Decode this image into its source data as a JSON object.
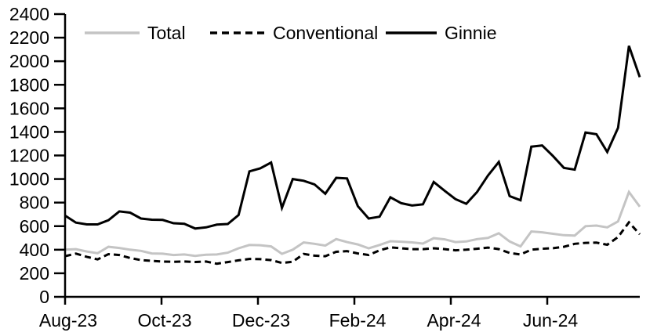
{
  "chart_data": {
    "type": "line",
    "title": "",
    "xlabel": "",
    "ylabel": "",
    "frequency": "weekly",
    "x_tick_labels": [
      "Aug-23",
      "Oct-23",
      "Dec-23",
      "Feb-24",
      "Apr-24",
      "Jun-24"
    ],
    "y_ticks": [
      0,
      200,
      400,
      600,
      800,
      1000,
      1200,
      1400,
      1600,
      1800,
      2000,
      2200,
      2400
    ],
    "ylim": [
      0,
      2400
    ],
    "grid": false,
    "legend_position": "top",
    "series": [
      {
        "name": "Total",
        "color": "#c4c4c4",
        "style": "solid",
        "values": [
          400,
          405,
          385,
          370,
          425,
          415,
          400,
          390,
          368,
          366,
          355,
          360,
          348,
          358,
          360,
          375,
          412,
          440,
          438,
          428,
          365,
          400,
          462,
          450,
          435,
          490,
          465,
          445,
          412,
          440,
          472,
          468,
          462,
          452,
          498,
          488,
          465,
          470,
          490,
          500,
          540,
          470,
          428,
          555,
          548,
          535,
          523,
          520,
          600,
          605,
          590,
          640,
          890,
          765
        ]
      },
      {
        "name": "Conventional",
        "color": "#000000",
        "style": "dashed",
        "values": [
          345,
          367,
          340,
          318,
          362,
          355,
          330,
          312,
          305,
          300,
          297,
          300,
          296,
          300,
          281,
          295,
          310,
          322,
          320,
          312,
          288,
          298,
          364,
          350,
          345,
          382,
          388,
          368,
          355,
          395,
          420,
          412,
          405,
          405,
          412,
          405,
          395,
          400,
          408,
          418,
          405,
          372,
          360,
          400,
          408,
          413,
          425,
          450,
          458,
          460,
          442,
          508,
          632,
          531
        ]
      },
      {
        "name": "Ginnie",
        "color": "#000000",
        "style": "solid",
        "values": [
          690,
          630,
          615,
          615,
          650,
          725,
          715,
          665,
          655,
          653,
          625,
          620,
          580,
          590,
          613,
          618,
          695,
          1065,
          1090,
          1140,
          755,
          1000,
          985,
          955,
          875,
          1010,
          1005,
          770,
          665,
          680,
          845,
          795,
          775,
          785,
          975,
          900,
          830,
          790,
          890,
          1030,
          1145,
          855,
          820,
          1275,
          1285,
          1195,
          1095,
          1080,
          1395,
          1380,
          1230,
          1435,
          2130,
          1865
        ]
      }
    ]
  }
}
